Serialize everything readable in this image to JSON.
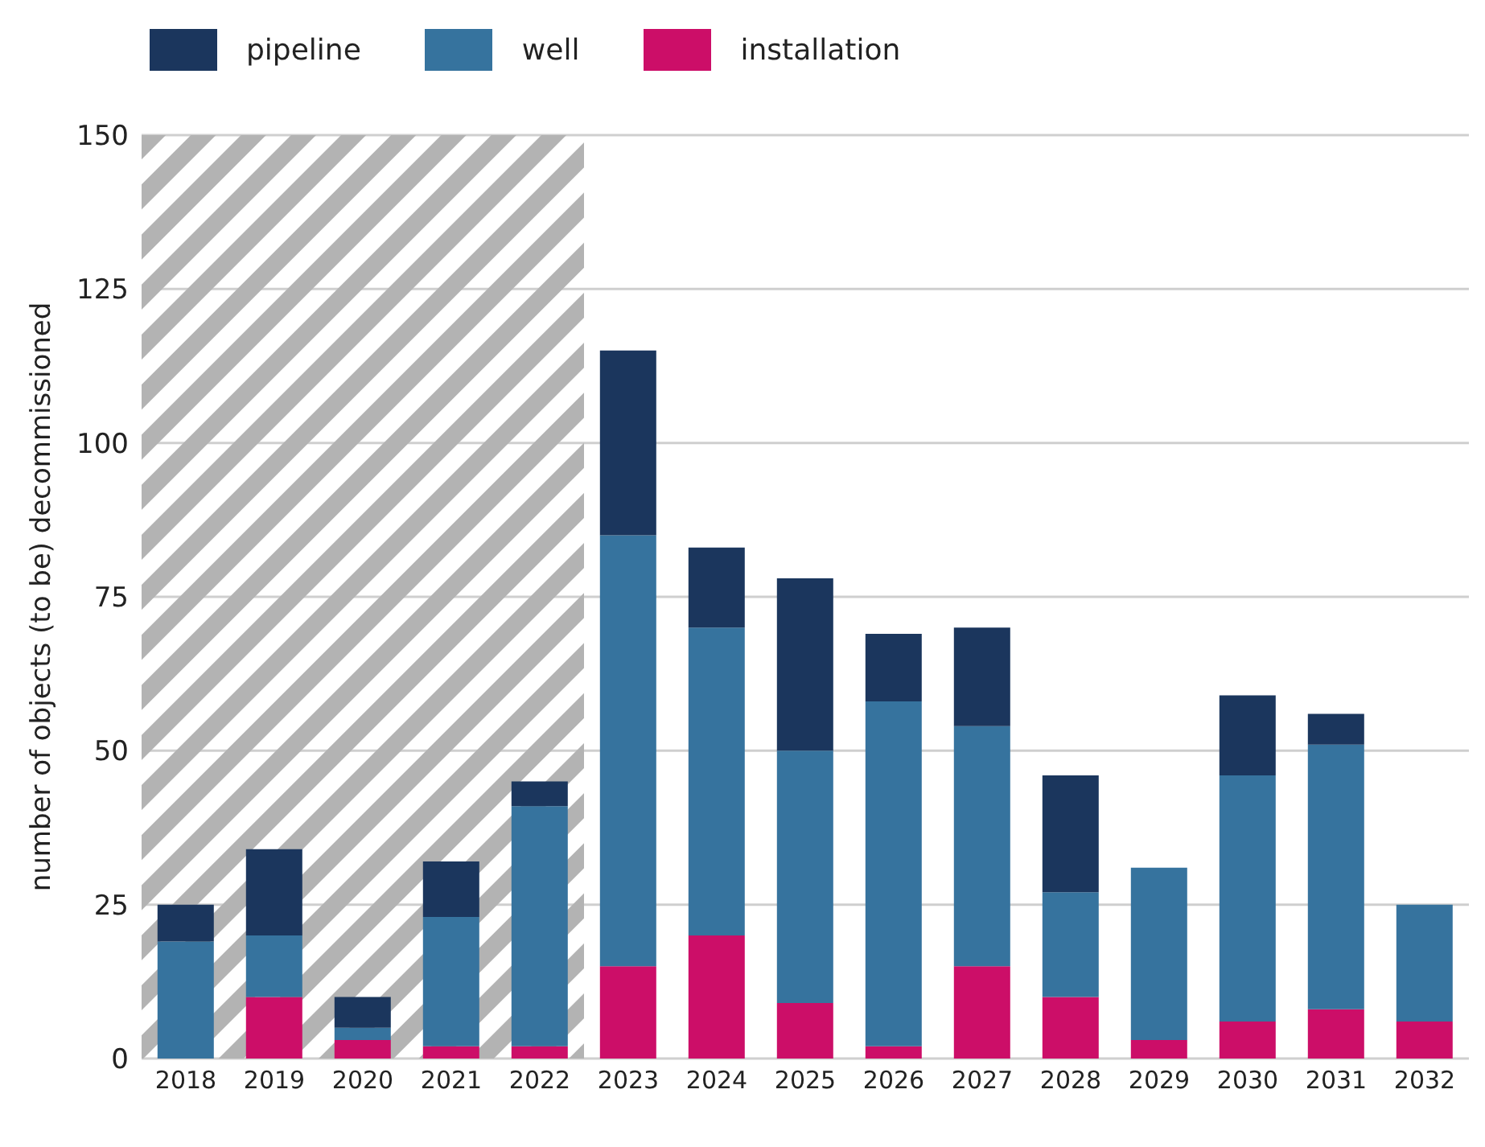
{
  "chart_data": {
    "type": "bar",
    "stacked": true,
    "ylabel": "number of objects (to be) decommissioned",
    "categories": [
      "2018",
      "2019",
      "2020",
      "2021",
      "2022",
      "2023",
      "2024",
      "2025",
      "2026",
      "2027",
      "2028",
      "2029",
      "2030",
      "2031",
      "2032"
    ],
    "series": [
      {
        "name": "installation",
        "color": "#cc0e68",
        "values": [
          0,
          10,
          3,
          2,
          2,
          15,
          20,
          9,
          2,
          15,
          10,
          3,
          6,
          8,
          6
        ]
      },
      {
        "name": "well",
        "color": "#36739e",
        "values": [
          19,
          10,
          2,
          21,
          39,
          70,
          50,
          41,
          56,
          39,
          17,
          28,
          40,
          43,
          19
        ]
      },
      {
        "name": "pipeline",
        "color": "#1b365d",
        "values": [
          6,
          14,
          5,
          9,
          4,
          30,
          13,
          28,
          11,
          16,
          19,
          0,
          13,
          5,
          0
        ]
      }
    ],
    "ylim": [
      0,
      150
    ],
    "yticks": [
      0,
      25,
      50,
      75,
      100,
      125,
      150
    ],
    "grid": "y",
    "legend": "top left",
    "bands": [
      {
        "axis": "x",
        "from": "2018",
        "to": "2022",
        "color": "#b3b3b3"
      }
    ]
  }
}
